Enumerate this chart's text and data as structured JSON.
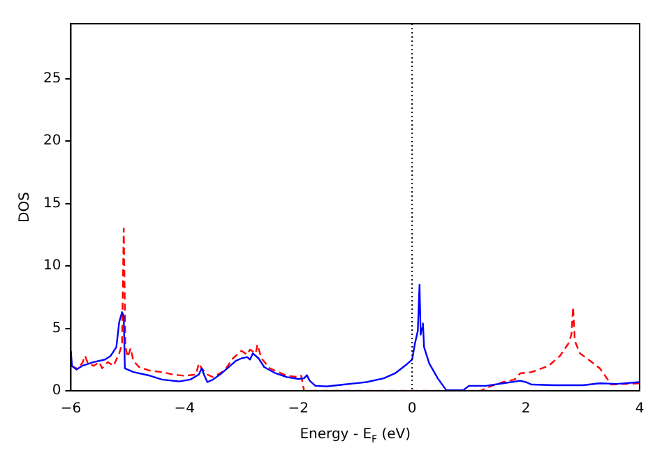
{
  "chart_data": {
    "type": "line",
    "xlabel": "Energy - E$_{F}$ (eV)",
    "ylabel": "DOS",
    "xlim": [
      -6,
      4
    ],
    "ylim": [
      0,
      29.4
    ],
    "xticks": [
      -6,
      -4,
      -2,
      0,
      2,
      4
    ],
    "yticks": [
      0,
      5,
      10,
      15,
      20,
      25
    ],
    "grid": false,
    "legend": false,
    "marker": "none",
    "ref_lines": [
      {
        "axis": "x",
        "value": 0,
        "color": "#000000",
        "line_style": "dotted"
      }
    ],
    "series": [
      {
        "color": "#0000ff",
        "line_style": "solid",
        "x": [
          -6,
          -5.98,
          -5.9,
          -5.8,
          -5.6,
          -5.4,
          -5.3,
          -5.2,
          -5.15,
          -5.1,
          -5.07,
          -5.05,
          -4.9,
          -4.6,
          -4.4,
          -4.1,
          -3.9,
          -3.75,
          -3.7,
          -3.65,
          -3.6,
          -3.5,
          -3.35,
          -3.25,
          -3.1,
          -3.0,
          -2.9,
          -2.85,
          -2.8,
          -2.7,
          -2.6,
          -2.4,
          -2.2,
          -2.0,
          -1.9,
          -1.85,
          -1.8,
          -1.7,
          -1.5,
          -1.2,
          -0.8,
          -0.5,
          -0.3,
          -0.1,
          0,
          0.05,
          0.1,
          0.13,
          0.15,
          0.17,
          0.19,
          0.21,
          0.3,
          0.45,
          0.6,
          0.9,
          1.0,
          1.3,
          1.6,
          1.9,
          2.0,
          2.1,
          2.5,
          3.0,
          3.3,
          3.6,
          4.0
        ],
        "values": [
          3.2,
          2.0,
          1.7,
          2.0,
          2.3,
          2.5,
          2.8,
          3.5,
          5.5,
          6.3,
          6.0,
          1.8,
          1.5,
          1.2,
          0.9,
          0.75,
          0.9,
          1.3,
          1.8,
          1.2,
          0.7,
          0.9,
          1.4,
          1.8,
          2.4,
          2.6,
          2.7,
          2.5,
          3.0,
          2.6,
          1.9,
          1.4,
          1.1,
          0.95,
          1.0,
          1.25,
          0.8,
          0.4,
          0.35,
          0.5,
          0.7,
          1.0,
          1.4,
          2.1,
          2.5,
          3.8,
          4.8,
          8.5,
          4.5,
          5.0,
          5.4,
          3.5,
          2.2,
          1.0,
          0.05,
          0.05,
          0.4,
          0.4,
          0.6,
          0.8,
          0.7,
          0.5,
          0.45,
          0.45,
          0.6,
          0.55,
          0.7
        ]
      },
      {
        "color": "#ff0000",
        "line_style": "dashed",
        "x": [
          -6,
          -5.9,
          -5.8,
          -5.75,
          -5.7,
          -5.6,
          -5.5,
          -5.45,
          -5.35,
          -5.25,
          -5.15,
          -5.1,
          -5.07,
          -5.04,
          -5.0,
          -4.95,
          -4.9,
          -4.8,
          -4.6,
          -4.4,
          -4.2,
          -4.0,
          -3.8,
          -3.75,
          -3.7,
          -3.6,
          -3.5,
          -3.3,
          -3.15,
          -3.0,
          -2.9,
          -2.85,
          -2.75,
          -2.72,
          -2.65,
          -2.5,
          -2.2,
          -2.0,
          -1.95,
          -1.9,
          0,
          1.2,
          1.4,
          1.6,
          1.8,
          1.9,
          2.1,
          2.4,
          2.6,
          2.75,
          2.8,
          2.83,
          2.86,
          2.95,
          3.1,
          3.3,
          3.5,
          4.0
        ],
        "values": [
          2.0,
          1.8,
          2.2,
          2.8,
          2.2,
          2.0,
          2.3,
          1.8,
          2.3,
          2.0,
          3.0,
          3.7,
          13.0,
          3.5,
          2.7,
          3.4,
          2.4,
          1.9,
          1.6,
          1.5,
          1.3,
          1.2,
          1.3,
          2.2,
          1.8,
          1.3,
          1.1,
          1.6,
          2.6,
          3.2,
          2.9,
          3.3,
          3.0,
          3.7,
          2.6,
          1.8,
          1.2,
          1.1,
          1.2,
          0,
          0,
          0,
          0.4,
          0.7,
          0.9,
          1.4,
          1.5,
          2.0,
          2.8,
          3.8,
          4.5,
          6.7,
          4.0,
          3.0,
          2.5,
          1.8,
          0.5,
          0.6
        ]
      }
    ]
  }
}
